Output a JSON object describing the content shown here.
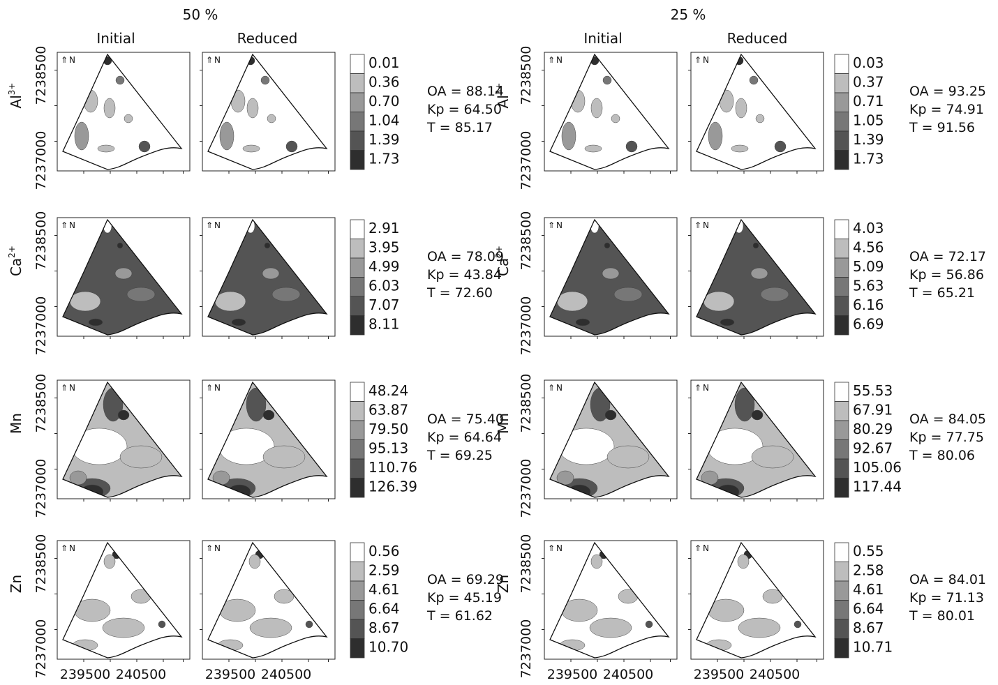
{
  "groups": [
    {
      "title": "50 %",
      "column_titles": [
        "Initial",
        "Reduced"
      ],
      "rows": [
        {
          "label": "Al",
          "label_sup": "3+",
          "legend": [
            "0.01",
            "0.36",
            "0.70",
            "1.04",
            "1.39",
            "1.73"
          ],
          "stats": [
            "OA = 88.14",
            "Kp = 64.50",
            "T = 85.17"
          ]
        },
        {
          "label": "Ca",
          "label_sup": "2+",
          "legend": [
            "2.91",
            "3.95",
            "4.99",
            "6.03",
            "7.07",
            "8.11"
          ],
          "stats": [
            "OA = 78.09",
            "Kp = 43.84",
            "T = 72.60"
          ]
        },
        {
          "label": "Mn",
          "legend": [
            "48.24",
            "63.87",
            "79.50",
            "95.13",
            "110.76",
            "126.39"
          ],
          "stats": [
            "OA = 75.40",
            "Kp = 64.64",
            "T = 69.25"
          ]
        },
        {
          "label": "Zn",
          "legend": [
            "0.56",
            "2.59",
            "4.61",
            "6.64",
            "8.67",
            "10.70"
          ],
          "stats": [
            "OA = 69.29",
            "Kp = 45.19",
            "T = 61.62"
          ]
        }
      ]
    },
    {
      "title": "25 %",
      "column_titles": [
        "Initial",
        "Reduced"
      ],
      "rows": [
        {
          "label": "Al",
          "label_sup": "3+",
          "legend": [
            "0.03",
            "0.37",
            "0.71",
            "1.05",
            "1.39",
            "1.73"
          ],
          "stats": [
            "OA = 93.25",
            "Kp = 74.91",
            "T = 91.56"
          ]
        },
        {
          "label": "Ca",
          "label_sup": "2+",
          "legend": [
            "4.03",
            "4.56",
            "5.09",
            "5.63",
            "6.16",
            "6.69"
          ],
          "stats": [
            "OA = 72.17",
            "Kp = 56.86",
            "T = 65.21"
          ]
        },
        {
          "label": "Mn",
          "legend": [
            "55.53",
            "67.91",
            "80.29",
            "92.67",
            "105.06",
            "117.44"
          ],
          "stats": [
            "OA = 84.05",
            "Kp = 77.75",
            "T = 80.06"
          ]
        },
        {
          "label": "Zn",
          "legend": [
            "0.55",
            "2.58",
            "4.61",
            "6.64",
            "8.67",
            "10.71"
          ],
          "stats": [
            "OA = 84.01",
            "Kp = 71.13",
            "T = 80.01"
          ]
        }
      ]
    }
  ],
  "north_label": "N",
  "y_ticks": [
    "7238500",
    "7237000"
  ],
  "x_ticks": [
    "239500",
    "240500"
  ]
}
